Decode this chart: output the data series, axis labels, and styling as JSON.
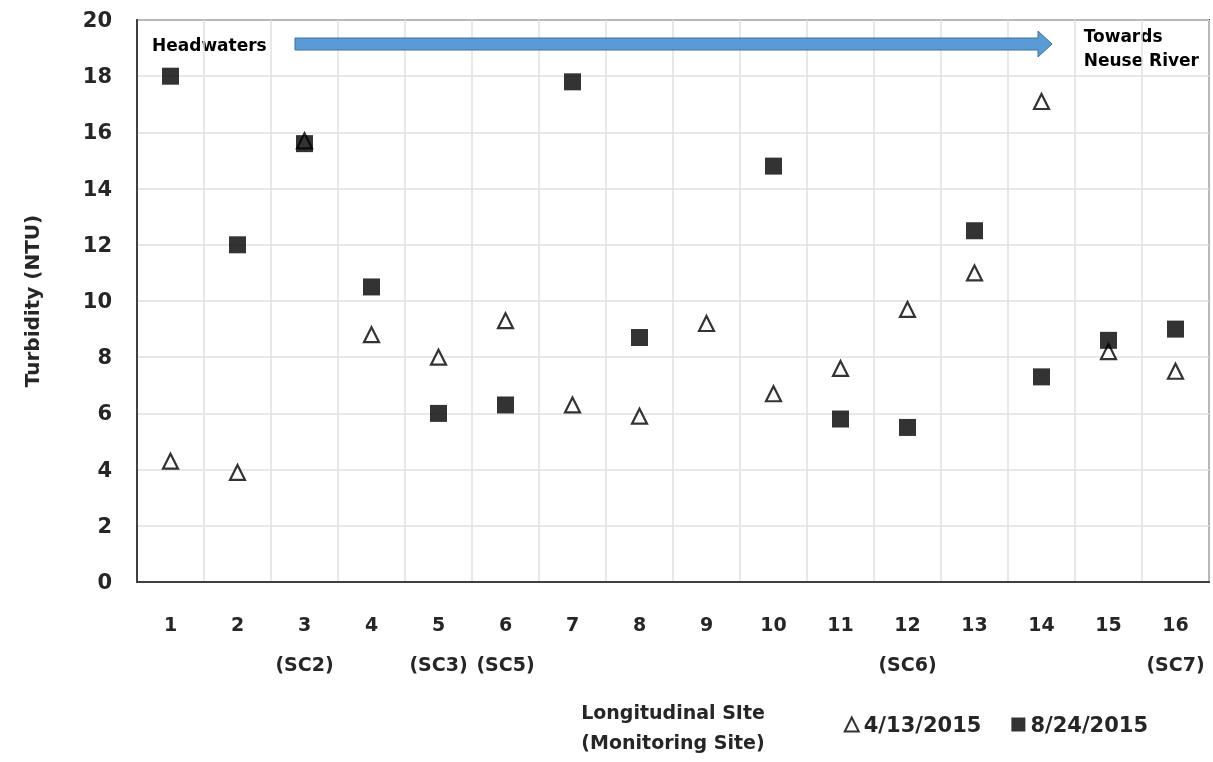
{
  "chart_data": {
    "type": "scatter",
    "xlabel": "Longitudinal SIte\n(Monitoring Site)",
    "ylabel": "Turbidity (NTU)",
    "categories": [
      "1",
      "2",
      "3\n(SC2)",
      "4",
      "5\n(SC3)",
      "6\n(SC5)",
      "7",
      "8",
      "9",
      "10",
      "11",
      "12\n(SC6)",
      "13",
      "14",
      "15",
      "16\n(SC7)"
    ],
    "series": [
      {
        "name": "4/13/2015",
        "color": "#000000",
        "marker": "triangle",
        "values": [
          4.3,
          3.9,
          15.7,
          8.8,
          8.0,
          9.3,
          6.3,
          5.9,
          9.2,
          6.7,
          7.6,
          9.7,
          11.0,
          17.1,
          8.2,
          7.5
        ]
      },
      {
        "name": "8/24/2015",
        "color": "#000000",
        "marker": "square",
        "values": [
          18.0,
          12.0,
          15.6,
          10.5,
          6.0,
          6.3,
          17.8,
          8.7,
          null,
          14.8,
          5.8,
          5.5,
          12.5,
          7.3,
          8.6,
          9.0
        ]
      }
    ],
    "ylim": [
      0,
      20
    ],
    "yticks": [
      0,
      2,
      4,
      6,
      8,
      10,
      12,
      14,
      16,
      18,
      20
    ],
    "grid": true,
    "legend": "bottom right",
    "annotations": [
      "Headwaters",
      "Towards\nNeuse River"
    ]
  }
}
